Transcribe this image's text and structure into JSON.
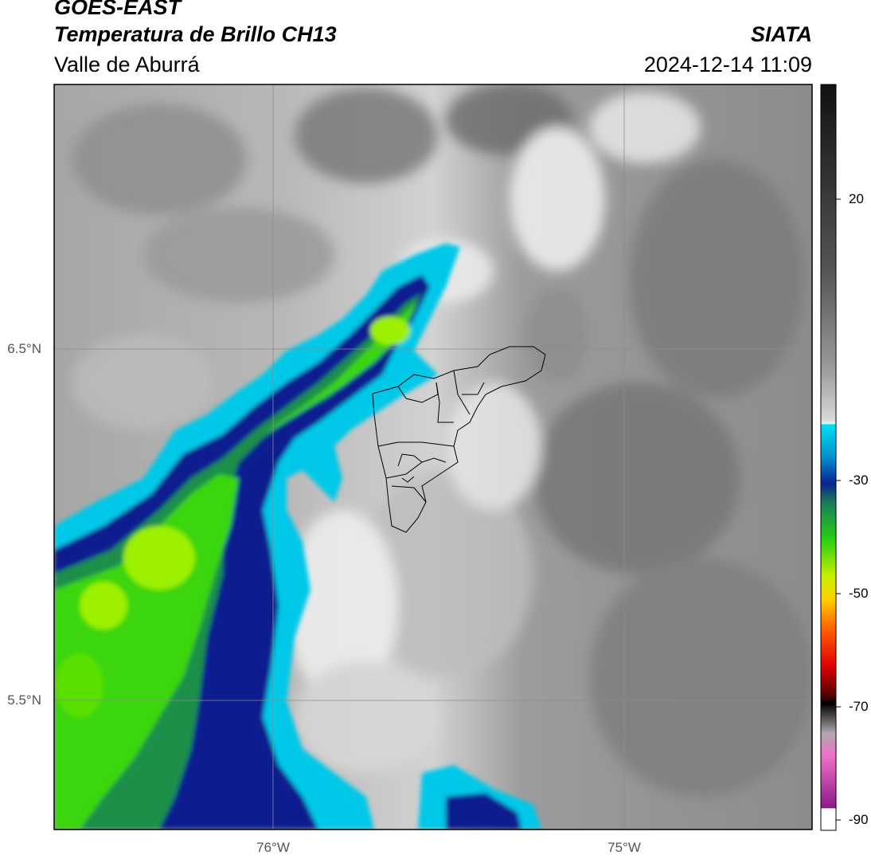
{
  "header": {
    "satellite": "GOES-EAST",
    "product": "Temperatura de Brillo CH13",
    "region": "Valle de Aburrá",
    "org": "SIATA",
    "datetime": "2024-12-14 11:09"
  },
  "map": {
    "lat_labels": [
      "6.5°N",
      "5.5°N"
    ],
    "lon_labels": [
      "76°W",
      "75°W"
    ],
    "colorbar_labels": [
      "20",
      "-30",
      "-50",
      "-70",
      "-90"
    ],
    "colors": {
      "cloud_top_cyan": "#00c8e8",
      "deep_blue": "#0a1f8f",
      "green": "#3bd60a",
      "lime": "#9cf000",
      "gray_clear": "#8a8a8a",
      "boundary": "#000000"
    }
  }
}
